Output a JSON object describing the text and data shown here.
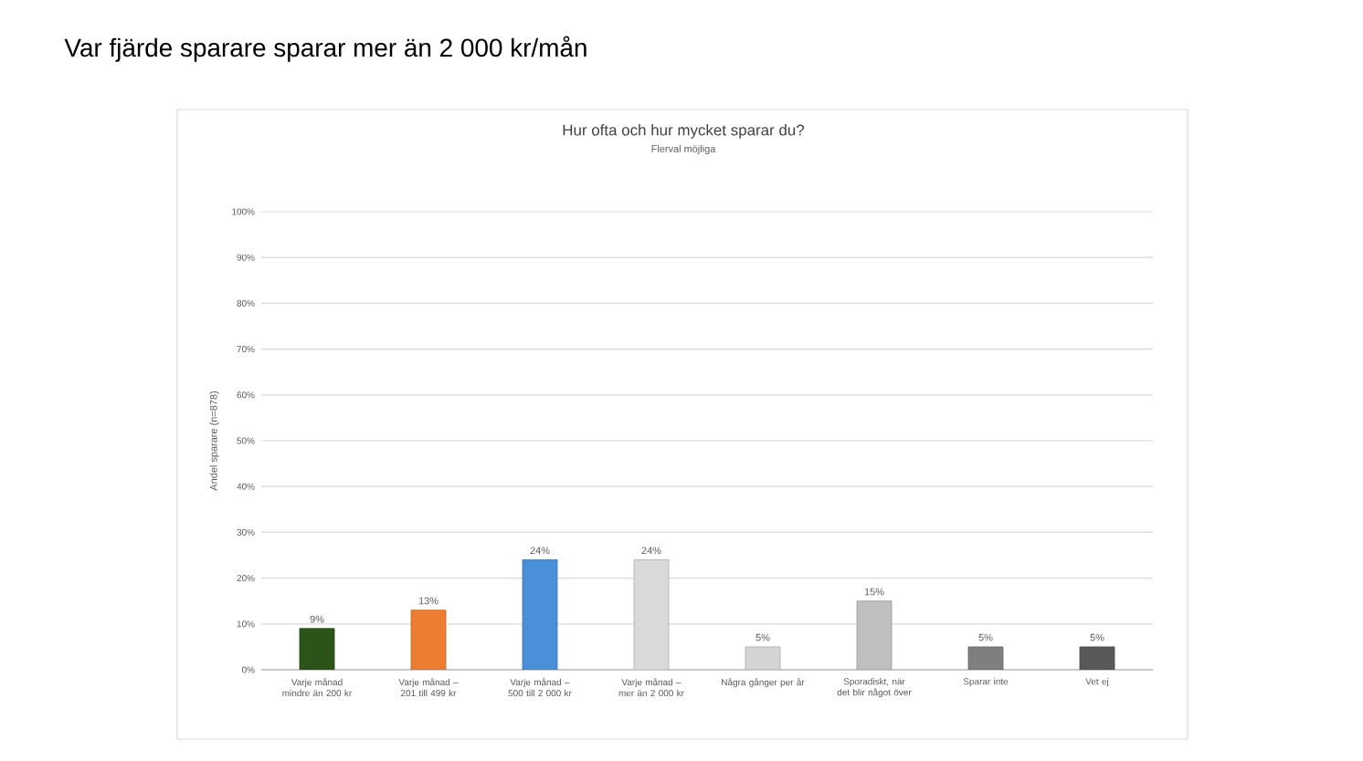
{
  "chart_data": {
    "type": "bar",
    "title": "Var fjärde sparare sparar mer än 2 000 kr/mån",
    "subtitle": "Hur ofta och hur mycket sparar du?",
    "annotations": [
      "Flerval möjliga"
    ],
    "ylabel": "Andel sparare (n=878)",
    "categories": [
      "Varje månad mindre än 200 kr",
      "Varje månad – 201 till 499 kr",
      "Varje månad – 500 till 2 000 kr",
      "Varje månad – mer än 2 000 kr",
      "Några gånger per år",
      "Sporadiskt, när det blir något över",
      "Sparar inte",
      "Vet ej"
    ],
    "values": [
      9,
      13,
      24,
      24,
      5,
      15,
      5,
      5
    ],
    "value_labels": [
      "9%",
      "13%",
      "24%",
      "24%",
      "5%",
      "15%",
      "5%",
      "5%"
    ],
    "colors": [
      "#2d5418",
      "#ed7d31",
      "#4a90d9",
      "#d9d9d9",
      "#d4d4d4",
      "#bfbfbf",
      "#7f7f7f",
      "#595959"
    ],
    "ylim": [
      0,
      100
    ],
    "yticks": [
      {
        "value": 0,
        "label": "0%"
      },
      {
        "value": 10,
        "label": "10%"
      },
      {
        "value": 20,
        "label": "20%"
      },
      {
        "value": 30,
        "label": "30%"
      },
      {
        "value": 40,
        "label": "40%"
      },
      {
        "value": 50,
        "label": "50%"
      },
      {
        "value": 60,
        "label": "60%"
      },
      {
        "value": 70,
        "label": "70%"
      },
      {
        "value": 80,
        "label": "80%"
      },
      {
        "value": 90,
        "label": "90%"
      },
      {
        "value": 100,
        "label": "100%"
      }
    ],
    "grid": "y"
  }
}
